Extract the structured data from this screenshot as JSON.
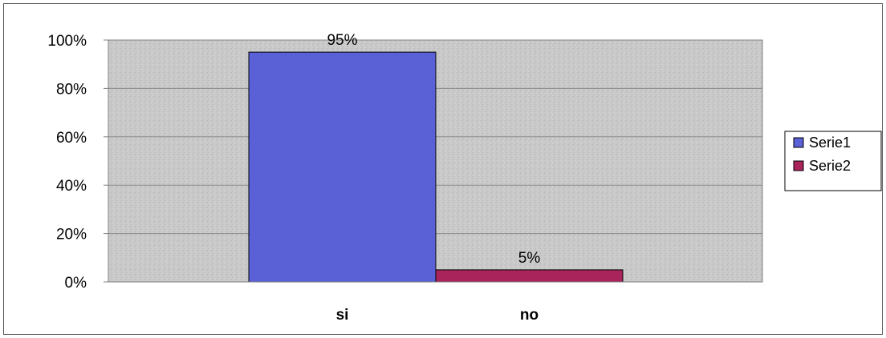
{
  "chart_data": {
    "type": "bar",
    "categories": [
      "si",
      "no"
    ],
    "series": [
      {
        "name": "Serie1",
        "category": "si",
        "value": 95,
        "label": "95%",
        "color": "#5a61d6"
      },
      {
        "name": "Serie2",
        "category": "no",
        "value": 5,
        "label": "5%",
        "color": "#a8245a"
      }
    ],
    "ylim": [
      0,
      100
    ],
    "y_ticks": [
      {
        "value": 0,
        "label": "0%"
      },
      {
        "value": 20,
        "label": "20%"
      },
      {
        "value": 40,
        "label": "40%"
      },
      {
        "value": 60,
        "label": "60%"
      },
      {
        "value": 80,
        "label": "80%"
      },
      {
        "value": 100,
        "label": "100%"
      }
    ],
    "grid": true,
    "legend_position": "right",
    "plot_background": "#c8c8c8"
  }
}
